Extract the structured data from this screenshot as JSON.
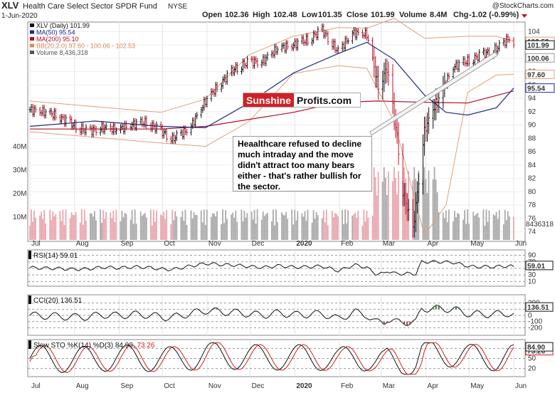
{
  "header": {
    "symbol": "XLV",
    "name": "Health Care Select Sector SPDR Fund",
    "exchange": "NYSE",
    "date": "1-Jun-2020",
    "open_label": "Open",
    "open": "102.36",
    "high_label": "High",
    "high": "102.48",
    "low_label": "Low",
    "low": "101.35",
    "close_label": "Close",
    "close": "101.99",
    "volume_label": "Volume",
    "volume": "8.4M",
    "chg_label": "Chg",
    "chg": "-1.02 (-0.99%)",
    "brand": "@StockCharts.com"
  },
  "legend": [
    {
      "text": "XLV (Daily) 101.99",
      "color": "#111111"
    },
    {
      "text": "MA(50) 95.54",
      "color": "#1a2b8c"
    },
    {
      "text": "MA(200) 95.10",
      "color": "#b0102a"
    },
    {
      "text": "BB(20,2.0) 97.60 - 100.06 - 102.53",
      "color": "#d98a5a"
    },
    {
      "text": "Volume 8,436,318",
      "color": "#555555"
    }
  ],
  "logo": {
    "part1": "Sunshine",
    "part2": "Profits.com"
  },
  "annotation": {
    "text": "Heaalthcare refused to decline much intraday and the move didn't attract too many bears either - that's rather bullish for the sector."
  },
  "colors": {
    "up": "#111111",
    "down": "#c0102a",
    "ma50": "#1a2b8c",
    "ma200": "#b0102a",
    "bb": "#e0a07a",
    "volume": "#aaaaaa",
    "volume_down": "#e9a6ae",
    "k_line": "#111111",
    "d_line": "#d0201f",
    "osc_fill_pos": "#4f7f4f",
    "osc_fill_neg": "#a05050"
  },
  "chart_data": {
    "type": "candlestick",
    "title": "XLV Health Care Select Sector SPDR Fund NYSE",
    "x_months": [
      "Jul",
      "Aug",
      "Sep",
      "Oct",
      "Nov",
      "Dec",
      "2020",
      "Feb",
      "Mar",
      "Apr",
      "May",
      "Jun"
    ],
    "price_axis": {
      "ticks": [
        74,
        76,
        78,
        80,
        82,
        84,
        86,
        88,
        90,
        92,
        94,
        96,
        98,
        100,
        102,
        104
      ],
      "range": [
        73,
        105
      ]
    },
    "price_path": [
      [
        "2019-07-01",
        92.3
      ],
      [
        "2019-07-10",
        92.0
      ],
      [
        "2019-07-20",
        91.4
      ],
      [
        "2019-07-31",
        90.0
      ],
      [
        "2019-08-10",
        89.0
      ],
      [
        "2019-08-20",
        89.6
      ],
      [
        "2019-08-31",
        89.3
      ],
      [
        "2019-09-10",
        90.1
      ],
      [
        "2019-09-20",
        90.4
      ],
      [
        "2019-09-30",
        89.1
      ],
      [
        "2019-10-08",
        87.9
      ],
      [
        "2019-10-20",
        89.5
      ],
      [
        "2019-10-31",
        93.6
      ],
      [
        "2019-11-10",
        96.2
      ],
      [
        "2019-11-20",
        98.4
      ],
      [
        "2019-11-30",
        99.4
      ],
      [
        "2019-12-10",
        99.6
      ],
      [
        "2019-12-20",
        101.5
      ],
      [
        "2019-12-31",
        102.0
      ],
      [
        "2020-01-10",
        102.8
      ],
      [
        "2020-01-20",
        104.2
      ],
      [
        "2020-01-31",
        101.0
      ],
      [
        "2020-02-10",
        103.8
      ],
      [
        "2020-02-20",
        103.6
      ],
      [
        "2020-02-28",
        95.7
      ],
      [
        "2020-03-05",
        98.5
      ],
      [
        "2020-03-12",
        88.3
      ],
      [
        "2020-03-16",
        80.0
      ],
      [
        "2020-03-23",
        74.3
      ],
      [
        "2020-03-31",
        89.1
      ],
      [
        "2020-04-08",
        93.3
      ],
      [
        "2020-04-20",
        98.7
      ],
      [
        "2020-04-30",
        99.6
      ],
      [
        "2020-05-10",
        100.5
      ],
      [
        "2020-05-20",
        101.4
      ],
      [
        "2020-05-29",
        103.1
      ],
      [
        "2020-06-01",
        101.99
      ]
    ],
    "ma50_path": [
      [
        "2019-07-01",
        89.8
      ],
      [
        "2019-08-15",
        90.6
      ],
      [
        "2019-09-30",
        89.8
      ],
      [
        "2019-10-31",
        89.6
      ],
      [
        "2019-11-30",
        93.3
      ],
      [
        "2019-12-31",
        97.8
      ],
      [
        "2020-01-31",
        100.7
      ],
      [
        "2020-02-20",
        102.4
      ],
      [
        "2020-03-10",
        99.8
      ],
      [
        "2020-03-31",
        94.5
      ],
      [
        "2020-04-15",
        91.9
      ],
      [
        "2020-04-30",
        91.5
      ],
      [
        "2020-05-20",
        92.6
      ],
      [
        "2020-06-01",
        95.54
      ]
    ],
    "ma200_path": [
      [
        "2019-07-01",
        89.4
      ],
      [
        "2019-09-30",
        89.4
      ],
      [
        "2019-10-31",
        89.8
      ],
      [
        "2019-12-31",
        91.9
      ],
      [
        "2020-01-31",
        93.4
      ],
      [
        "2020-02-28",
        93.6
      ],
      [
        "2020-03-31",
        93.4
      ],
      [
        "2020-04-30",
        93.3
      ],
      [
        "2020-06-01",
        95.1
      ]
    ],
    "bb_upper_path": [
      [
        "2019-07-01",
        93.6
      ],
      [
        "2019-09-30",
        91.9
      ],
      [
        "2019-10-31",
        93.9
      ],
      [
        "2019-11-30",
        100.5
      ],
      [
        "2019-12-31",
        103.3
      ],
      [
        "2020-01-31",
        104.6
      ],
      [
        "2020-02-20",
        104.5
      ],
      [
        "2020-03-10",
        106.0
      ],
      [
        "2020-03-31",
        103.0
      ],
      [
        "2020-04-30",
        103.3
      ],
      [
        "2020-05-20",
        103.3
      ],
      [
        "2020-06-01",
        102.53
      ]
    ],
    "bb_lower_path": [
      [
        "2019-07-01",
        89.0
      ],
      [
        "2019-09-30",
        87.3
      ],
      [
        "2019-10-31",
        86.8
      ],
      [
        "2019-11-30",
        90.5
      ],
      [
        "2019-12-31",
        97.7
      ],
      [
        "2020-01-31",
        98.9
      ],
      [
        "2020-02-20",
        98.5
      ],
      [
        "2020-03-10",
        90.5
      ],
      [
        "2020-03-31",
        73.5
      ],
      [
        "2020-04-15",
        78.0
      ],
      [
        "2020-04-30",
        94.9
      ],
      [
        "2020-05-20",
        97.5
      ],
      [
        "2020-06-01",
        97.6
      ]
    ],
    "volume_axis": {
      "ticks": [
        10,
        20,
        30,
        40
      ],
      "unit": "M"
    },
    "volume_levels_M": {
      "pre_march": 10,
      "march_peak": 31,
      "june": 8.4
    },
    "volume_last_label": "8436318",
    "rsi": {
      "name": "RSI(14)",
      "last": 59.01,
      "ticks": [
        90,
        70,
        50,
        30,
        10
      ]
    },
    "cci": {
      "name": "CCI(20)",
      "last": 136.51,
      "ticks": [
        200,
        100,
        0,
        -100,
        -200
      ]
    },
    "sto": {
      "name": "Slow STO %K(14) %D(3)",
      "k_last": 84.9,
      "d_last": 73.26,
      "ticks": [
        80,
        50,
        20
      ]
    }
  }
}
